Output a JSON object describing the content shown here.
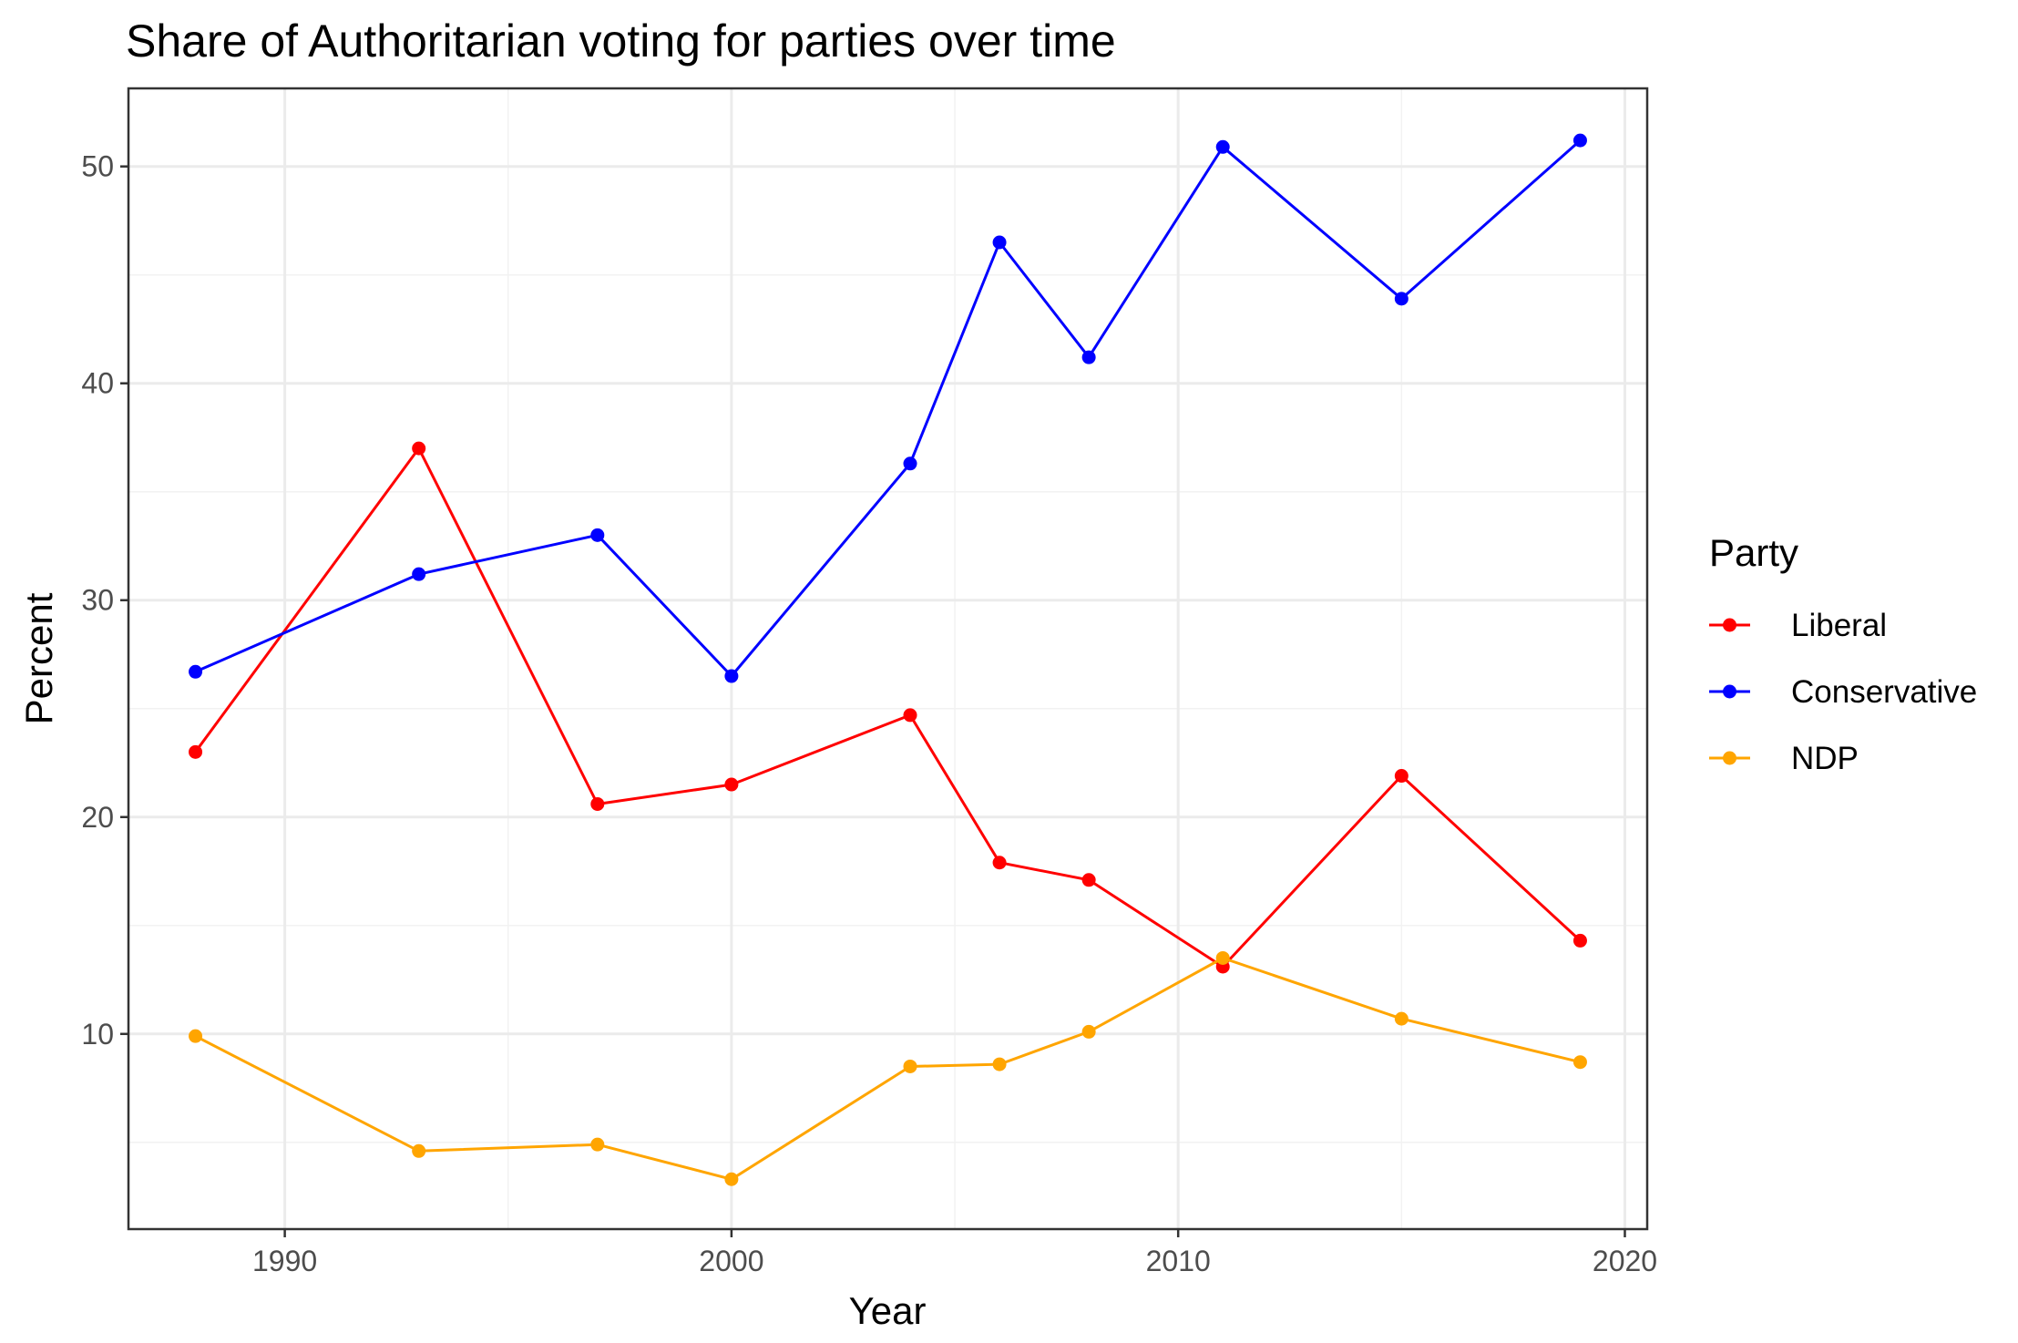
{
  "chart_data": {
    "type": "line",
    "title": "Share of Authoritarian voting for parties over time",
    "xlabel": "Year",
    "ylabel": "Percent",
    "xlim": [
      1986.5,
      2020.5
    ],
    "ylim": [
      1.0,
      53.6
    ],
    "x_ticks": [
      1990,
      2000,
      2010,
      2020
    ],
    "y_ticks": [
      10,
      20,
      30,
      40,
      50
    ],
    "grid": true,
    "legend_title": "Party",
    "legend_position": "right",
    "x": [
      1988,
      1993,
      1997,
      2000,
      2004,
      2006,
      2008,
      2011,
      2015,
      2019
    ],
    "series": [
      {
        "name": "Liberal",
        "color": "#ff0000",
        "values": [
          23.0,
          37.0,
          20.6,
          21.5,
          24.7,
          17.9,
          17.1,
          13.1,
          21.9,
          14.3
        ]
      },
      {
        "name": "Conservative",
        "color": "#0000ff",
        "values": [
          26.7,
          31.2,
          33.0,
          26.5,
          36.3,
          46.5,
          41.2,
          50.9,
          43.9,
          51.2
        ]
      },
      {
        "name": "NDP",
        "color": "#ffa500",
        "values": [
          9.9,
          4.6,
          4.9,
          3.3,
          8.5,
          8.6,
          10.1,
          13.5,
          10.7,
          8.7
        ]
      }
    ]
  }
}
